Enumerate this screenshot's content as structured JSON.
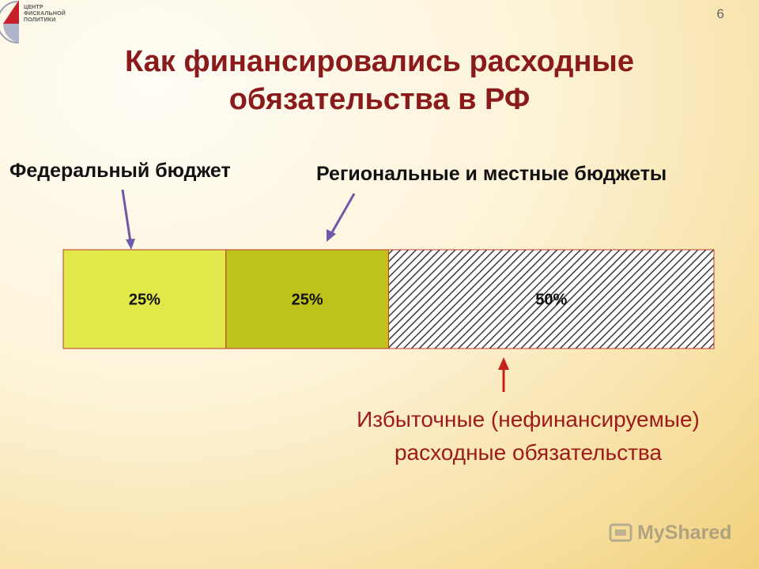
{
  "logo": {
    "line1": "ЦЕНТР",
    "line2": "ФИСКАЛЬНОЙ",
    "line3": "ПОЛИТИКИ"
  },
  "page_number": "6",
  "title_line1": "Как финансировались расходные",
  "title_line2": "обязательства в РФ",
  "labels": {
    "federal": "Федеральный бюджет",
    "regional": "Региональные и местные бюджеты"
  },
  "note_line1": "Избыточные (нефинансируемые)",
  "note_line2": "расходные обязательства",
  "watermark": "MyShared",
  "colors": {
    "federal": "#e1e94a",
    "regional": "#c0c21c",
    "title": "#8b1a1a",
    "note": "#9e1a1a"
  },
  "chart_data": {
    "type": "bar",
    "orientation": "horizontal-stacked",
    "segments": [
      {
        "label": "25%",
        "value": 25,
        "fill": "#e1e94a"
      },
      {
        "label": "25%",
        "value": 25,
        "fill": "#c0c21c"
      },
      {
        "label": "50%",
        "value": 50,
        "fill": "hatched"
      }
    ],
    "total": 100
  }
}
